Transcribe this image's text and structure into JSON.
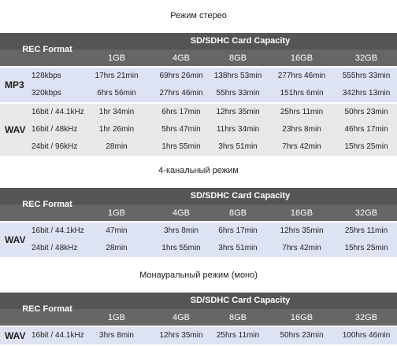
{
  "sections": [
    {
      "title": "Режим стерео",
      "table": {
        "header": {
          "rec_format": "REC Format",
          "capacity": "SD/SDHC Card Capacity",
          "sizes": [
            "1GB",
            "4GB",
            "8GB",
            "16GB",
            "32GB"
          ]
        },
        "groups": [
          {
            "name": "MP3",
            "rows": [
              {
                "format": "128kbps",
                "values": [
                  "17hrs 21min",
                  "69hrs 26min",
                  "138hrs 53min",
                  "277hrs 46min",
                  "555hrs 33min"
                ]
              },
              {
                "format": "320kbps",
                "values": [
                  "6hrs 56min",
                  "27hrs 46min",
                  "55hrs 33min",
                  "151hrs 6min",
                  "342hrs 13min"
                ]
              }
            ]
          },
          {
            "name": "WAV",
            "rows": [
              {
                "format": "16bit / 44.1kHz",
                "values": [
                  "1hr 34min",
                  "6hrs 17min",
                  "12hrs 35min",
                  "25hrs 11min",
                  "50hrs 23min"
                ]
              },
              {
                "format": "16bit / 48kHz",
                "values": [
                  "1hr 26min",
                  "5hrs 47min",
                  "11hrs 34min",
                  "23hrs 8min",
                  "46hrs 17min"
                ]
              },
              {
                "format": "24bit / 96kHz",
                "values": [
                  "28min",
                  "1hrs 55min",
                  "3hrs 51min",
                  "7hrs 42min",
                  "15hrs 25min"
                ]
              }
            ]
          }
        ]
      }
    },
    {
      "title": "4-канальный режим",
      "table": {
        "header": {
          "rec_format": "REC Format",
          "capacity": "SD/SDHC Card Capacity",
          "sizes": [
            "1GB",
            "4GB",
            "8GB",
            "16GB",
            "32GB"
          ]
        },
        "groups": [
          {
            "name": "WAV",
            "rows": [
              {
                "format": "16bit / 44.1kHz",
                "values": [
                  "47min",
                  "3hrs 8min",
                  "6hrs 17min",
                  "12hrs 35min",
                  "25hrs 11min"
                ]
              },
              {
                "format": "24bit / 48kHz",
                "values": [
                  "28min",
                  "1hrs 55min",
                  "3hrs 51min",
                  "7hrs 42min",
                  "15hrs 25min"
                ]
              }
            ]
          }
        ]
      }
    },
    {
      "title": "Монауральный режим (моно)",
      "table": {
        "header": {
          "rec_format": "REC Format",
          "capacity": "SD/SDHC Card Capacity",
          "sizes": [
            "1GB",
            "4GB",
            "8GB",
            "16GB",
            "32GB"
          ]
        },
        "groups": [
          {
            "name": "WAV",
            "rows": [
              {
                "format": "16bit / 44.1kHz",
                "values": [
                  "3hrs 8min",
                  "12hrs 35min",
                  "25hrs 11min",
                  "50hrs 23min",
                  "100hrs 46min"
                ]
              }
            ]
          }
        ]
      }
    }
  ]
}
